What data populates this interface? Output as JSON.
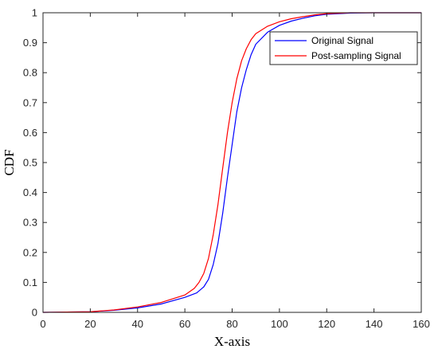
{
  "chart_data": {
    "type": "line",
    "title": "",
    "xlabel": "X-axis",
    "ylabel": "CDF",
    "xlim": [
      0,
      160
    ],
    "ylim": [
      0,
      1
    ],
    "xticks": [
      0,
      20,
      40,
      60,
      80,
      100,
      120,
      140,
      160
    ],
    "yticks": [
      0,
      0.1,
      0.2,
      0.3,
      0.4,
      0.5,
      0.6,
      0.7,
      0.8,
      0.9,
      1
    ],
    "grid": false,
    "legend_position": "top-right",
    "series": [
      {
        "name": "Original Signal",
        "color": "#0000ff",
        "x": [
          0,
          20,
          30,
          40,
          50,
          60,
          65,
          68,
          70,
          72,
          74,
          76,
          78,
          80,
          82,
          84,
          86,
          88,
          90,
          95,
          100,
          105,
          110,
          115,
          120,
          130,
          140,
          160
        ],
        "y": [
          0,
          0.002,
          0.007,
          0.015,
          0.028,
          0.05,
          0.065,
          0.085,
          0.11,
          0.16,
          0.23,
          0.33,
          0.45,
          0.56,
          0.67,
          0.75,
          0.81,
          0.86,
          0.895,
          0.935,
          0.958,
          0.972,
          0.982,
          0.99,
          0.995,
          0.999,
          1,
          1
        ]
      },
      {
        "name": "Post-sampling Signal",
        "color": "#ff0000",
        "x": [
          0,
          20,
          30,
          40,
          50,
          60,
          64,
          66,
          68,
          70,
          72,
          74,
          76,
          78,
          80,
          82,
          84,
          86,
          88,
          90,
          95,
          100,
          105,
          110,
          115,
          120,
          130,
          140,
          160
        ],
        "y": [
          0,
          0.002,
          0.008,
          0.018,
          0.033,
          0.058,
          0.08,
          0.1,
          0.13,
          0.18,
          0.26,
          0.36,
          0.48,
          0.6,
          0.7,
          0.78,
          0.84,
          0.88,
          0.91,
          0.93,
          0.955,
          0.97,
          0.98,
          0.987,
          0.993,
          0.997,
          1,
          1,
          1
        ]
      }
    ]
  }
}
